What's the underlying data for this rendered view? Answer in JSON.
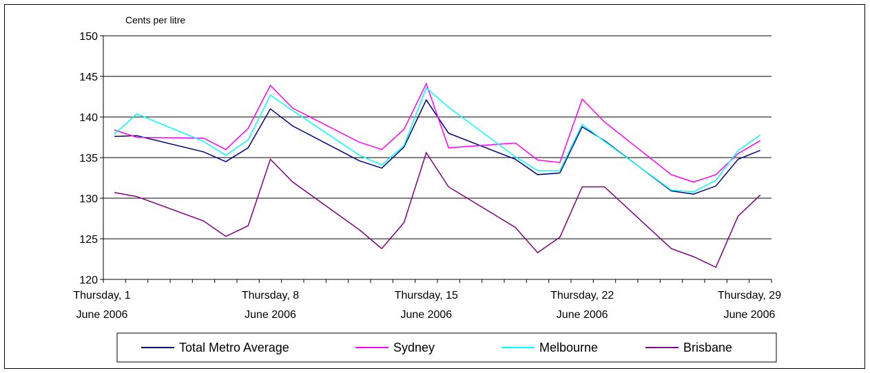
{
  "chart_data": {
    "type": "line",
    "title": "",
    "ylabel": "Cents per litre",
    "xlabel": "",
    "ylim": [
      120,
      150
    ],
    "y_ticks": [
      120,
      125,
      130,
      135,
      140,
      145,
      150
    ],
    "grid": "horizontal",
    "legend_position": "bottom",
    "x_count": 28,
    "x_tick_positions": [
      1,
      8,
      15,
      22,
      29
    ],
    "x_tick_labels": [
      [
        "Thursday, 1",
        "June 2006"
      ],
      [
        "Thursday, 8",
        "June 2006"
      ],
      [
        "Thursday, 15",
        "June 2006"
      ],
      [
        "Thursday, 22",
        "June 2006"
      ],
      [
        "Thursday, 29",
        "June 2006"
      ]
    ],
    "series": [
      {
        "name": "Total Metro Average",
        "color": "#000080",
        "points": [
          [
            1,
            137.6
          ],
          [
            2,
            137.7
          ],
          [
            5,
            135.7
          ],
          [
            6,
            134.5
          ],
          [
            7,
            136.2
          ],
          [
            8,
            141.0
          ],
          [
            9,
            138.9
          ],
          [
            12,
            134.6
          ],
          [
            13,
            133.7
          ],
          [
            14,
            136.3
          ],
          [
            15,
            142.1
          ],
          [
            16,
            138.0
          ],
          [
            19,
            134.8
          ],
          [
            20,
            132.9
          ],
          [
            21,
            133.1
          ],
          [
            22,
            138.8
          ],
          [
            23,
            137.1
          ],
          [
            26,
            130.9
          ],
          [
            27,
            130.5
          ],
          [
            28,
            131.5
          ],
          [
            29,
            134.8
          ],
          [
            30,
            135.9
          ]
        ]
      },
      {
        "name": "Sydney",
        "color": "#ff00ff",
        "points": [
          [
            1,
            138.4
          ],
          [
            2,
            137.5
          ],
          [
            5,
            137.4
          ],
          [
            6,
            136.0
          ],
          [
            7,
            138.6
          ],
          [
            8,
            143.9
          ],
          [
            9,
            141.1
          ],
          [
            12,
            136.9
          ],
          [
            13,
            136.0
          ],
          [
            14,
            138.5
          ],
          [
            15,
            144.1
          ],
          [
            16,
            136.2
          ],
          [
            19,
            136.8
          ],
          [
            20,
            134.7
          ],
          [
            21,
            134.4
          ],
          [
            22,
            142.2
          ],
          [
            23,
            139.4
          ],
          [
            26,
            132.9
          ],
          [
            27,
            132.0
          ],
          [
            28,
            132.9
          ],
          [
            29,
            135.5
          ],
          [
            30,
            137.1
          ]
        ]
      },
      {
        "name": "Melbourne",
        "color": "#00ffff",
        "points": [
          [
            1,
            137.9
          ],
          [
            2,
            140.4
          ],
          [
            5,
            137.0
          ],
          [
            6,
            135.3
          ],
          [
            7,
            137.2
          ],
          [
            8,
            142.7
          ],
          [
            9,
            140.8
          ],
          [
            12,
            135.3
          ],
          [
            13,
            134.1
          ],
          [
            14,
            136.5
          ],
          [
            15,
            143.6
          ],
          [
            16,
            141.2
          ],
          [
            19,
            135.1
          ],
          [
            20,
            133.4
          ],
          [
            21,
            133.4
          ],
          [
            22,
            139.1
          ],
          [
            23,
            137.0
          ],
          [
            26,
            131.0
          ],
          [
            27,
            130.8
          ],
          [
            28,
            132.2
          ],
          [
            29,
            135.9
          ],
          [
            30,
            137.8
          ]
        ]
      },
      {
        "name": "Brisbane",
        "color": "#800080",
        "points": [
          [
            1,
            130.7
          ],
          [
            2,
            130.2
          ],
          [
            5,
            127.2
          ],
          [
            6,
            125.3
          ],
          [
            7,
            126.6
          ],
          [
            8,
            134.8
          ],
          [
            9,
            132.0
          ],
          [
            12,
            126.1
          ],
          [
            13,
            123.8
          ],
          [
            14,
            127.0
          ],
          [
            15,
            135.6
          ],
          [
            16,
            131.4
          ],
          [
            19,
            126.4
          ],
          [
            20,
            123.3
          ],
          [
            21,
            125.2
          ],
          [
            22,
            131.4
          ],
          [
            23,
            131.4
          ],
          [
            26,
            123.8
          ],
          [
            27,
            122.8
          ],
          [
            28,
            121.5
          ],
          [
            29,
            127.8
          ],
          [
            30,
            130.4
          ]
        ]
      }
    ]
  }
}
